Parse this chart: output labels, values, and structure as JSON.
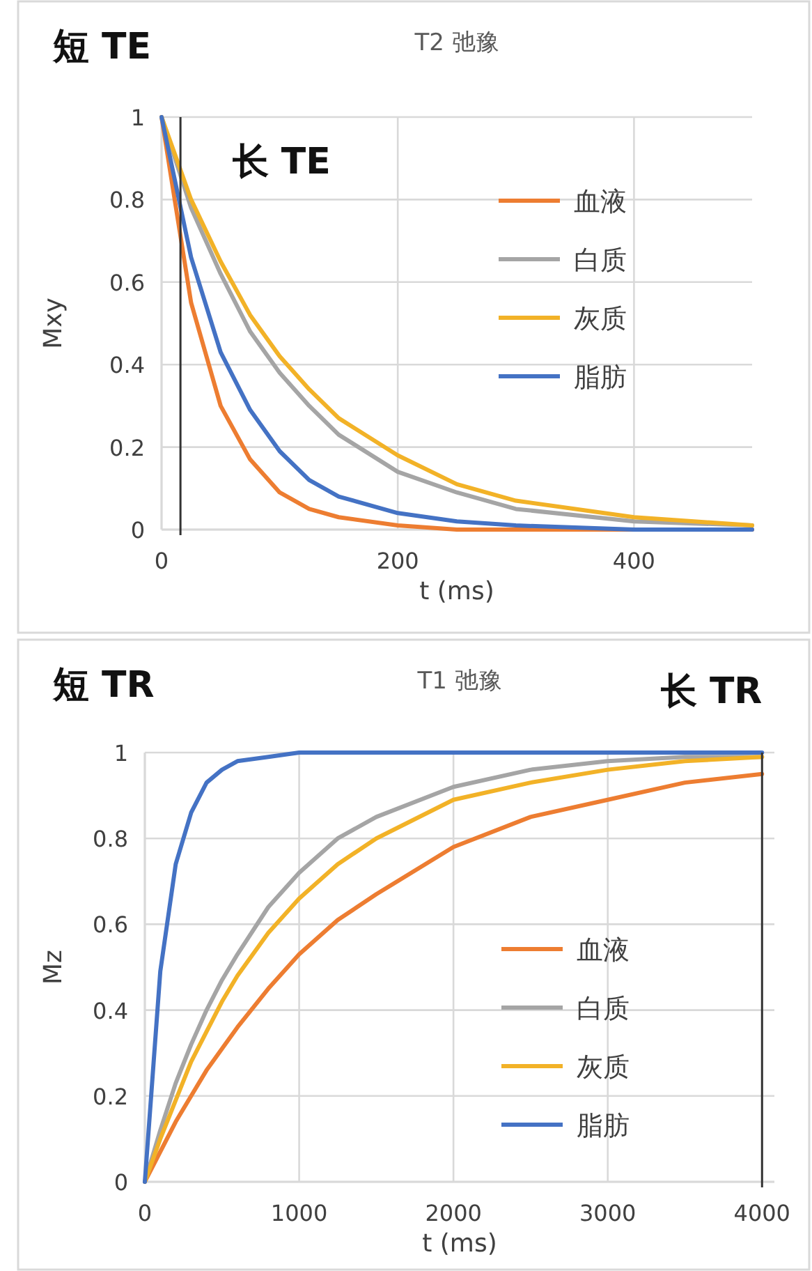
{
  "chart_data": [
    {
      "type": "line",
      "title": "T2 弛豫",
      "xlabel": "t (ms)",
      "ylabel": "Mxy",
      "x": [
        0,
        25,
        50,
        75,
        100,
        125,
        150,
        200,
        250,
        300,
        400,
        500
      ],
      "series": [
        {
          "name": "血液",
          "color": "#ed7d31",
          "values": [
            1,
            0.55,
            0.3,
            0.17,
            0.09,
            0.05,
            0.03,
            0.01,
            0,
            0,
            0,
            0
          ]
        },
        {
          "name": "白质",
          "color": "#a5a5a5",
          "values": [
            1,
            0.78,
            0.62,
            0.48,
            0.38,
            0.3,
            0.23,
            0.14,
            0.09,
            0.05,
            0.02,
            0.01
          ]
        },
        {
          "name": "灰质",
          "color": "#f2b227",
          "values": [
            1,
            0.8,
            0.65,
            0.52,
            0.42,
            0.34,
            0.27,
            0.18,
            0.11,
            0.07,
            0.03,
            0.01
          ]
        },
        {
          "name": "脂肪",
          "color": "#4472c4",
          "values": [
            1,
            0.66,
            0.43,
            0.29,
            0.19,
            0.12,
            0.08,
            0.04,
            0.02,
            0.01,
            0,
            0
          ]
        }
      ],
      "xlim": [
        0,
        500
      ],
      "xticks": [
        0,
        200,
        400
      ],
      "ylim": [
        0,
        1
      ],
      "yticks": [
        0,
        0.2,
        0.4,
        0.6,
        0.8,
        1
      ],
      "grid": true,
      "legend": "top right",
      "marker": "none",
      "line_style": "solid",
      "ref_lines": [
        {
          "axis": "x",
          "value": 16,
          "color": "#333333"
        }
      ],
      "annotations": [
        "短 TE",
        "长 TE"
      ]
    },
    {
      "type": "line",
      "title": "T1 弛豫",
      "xlabel": "t (ms)",
      "ylabel": "Mz",
      "x": [
        0,
        100,
        200,
        300,
        400,
        500,
        600,
        800,
        1000,
        1250,
        1500,
        2000,
        2500,
        3000,
        3500,
        4000
      ],
      "series": [
        {
          "name": "血液",
          "color": "#ed7d31",
          "values": [
            0,
            0.07,
            0.14,
            0.2,
            0.26,
            0.31,
            0.36,
            0.45,
            0.53,
            0.61,
            0.67,
            0.78,
            0.85,
            0.89,
            0.93,
            0.95
          ]
        },
        {
          "name": "白质",
          "color": "#a5a5a5",
          "values": [
            0,
            0.12,
            0.23,
            0.32,
            0.4,
            0.47,
            0.53,
            0.64,
            0.72,
            0.8,
            0.85,
            0.92,
            0.96,
            0.98,
            0.99,
            0.99
          ]
        },
        {
          "name": "灰质",
          "color": "#f2b227",
          "values": [
            0,
            0.1,
            0.19,
            0.28,
            0.35,
            0.42,
            0.48,
            0.58,
            0.66,
            0.74,
            0.8,
            0.89,
            0.93,
            0.96,
            0.98,
            0.99
          ]
        },
        {
          "name": "脂肪",
          "color": "#4472c4",
          "values": [
            0,
            0.49,
            0.74,
            0.86,
            0.93,
            0.96,
            0.98,
            0.99,
            1,
            1,
            1,
            1,
            1,
            1,
            1,
            1
          ]
        }
      ],
      "xlim": [
        0,
        4080
      ],
      "xticks": [
        0,
        1000,
        2000,
        3000,
        4000
      ],
      "ylim": [
        0,
        1
      ],
      "yticks": [
        0,
        0.2,
        0.4,
        0.6,
        0.8,
        1
      ],
      "grid": true,
      "legend": "bottom right",
      "marker": "none",
      "line_style": "solid",
      "ref_lines": [
        {
          "axis": "x",
          "value": 4000,
          "color": "#333333"
        }
      ],
      "annotations": [
        "短 TR",
        "长 TR"
      ]
    }
  ]
}
